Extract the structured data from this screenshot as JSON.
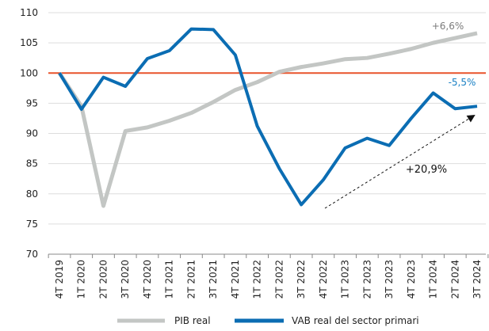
{
  "chart_data": {
    "type": "line",
    "categories": [
      "4T 2019",
      "1T 2020",
      "2T 2020",
      "3T 2020",
      "4T 2020",
      "1T 2021",
      "2T 2021",
      "3T 2021",
      "4T 2021",
      "1T 2022",
      "2T 2022",
      "3T 2022",
      "4T 2022",
      "1T 2023",
      "2T 2023",
      "3T 2023",
      "4T 2023",
      "1T 2024",
      "2T 2024",
      "3T 2024"
    ],
    "series": [
      {
        "name": "PIB real",
        "color": "#c3c6c4",
        "values": [
          100,
          94.5,
          78,
          90.4,
          91,
          92.1,
          93.4,
          95.2,
          97.2,
          98.5,
          100.2,
          101,
          101.6,
          102.3,
          102.5,
          103.2,
          104,
          105,
          105.8,
          106.6
        ]
      },
      {
        "name": "VAB real del sector primari",
        "color": "#0b6db3",
        "values": [
          100,
          94,
          99.3,
          97.8,
          102.4,
          103.7,
          107.3,
          107.2,
          103,
          91.2,
          84.2,
          78.2,
          82.3,
          87.6,
          89.2,
          88,
          92.5,
          96.7,
          94.1,
          94.5
        ]
      }
    ],
    "ylim": [
      70,
      110
    ],
    "yticks": [
      70,
      75,
      80,
      85,
      90,
      95,
      100,
      105,
      110
    ],
    "grid": true,
    "reference_line": {
      "value": 100,
      "color": "#e8532b"
    },
    "annotations": [
      {
        "text": "+6,6%",
        "color": "#7b7b7b"
      },
      {
        "text": "-5,5%",
        "color": "#1a80c4"
      },
      {
        "text": "+20,9%",
        "color": "#111111"
      }
    ]
  }
}
